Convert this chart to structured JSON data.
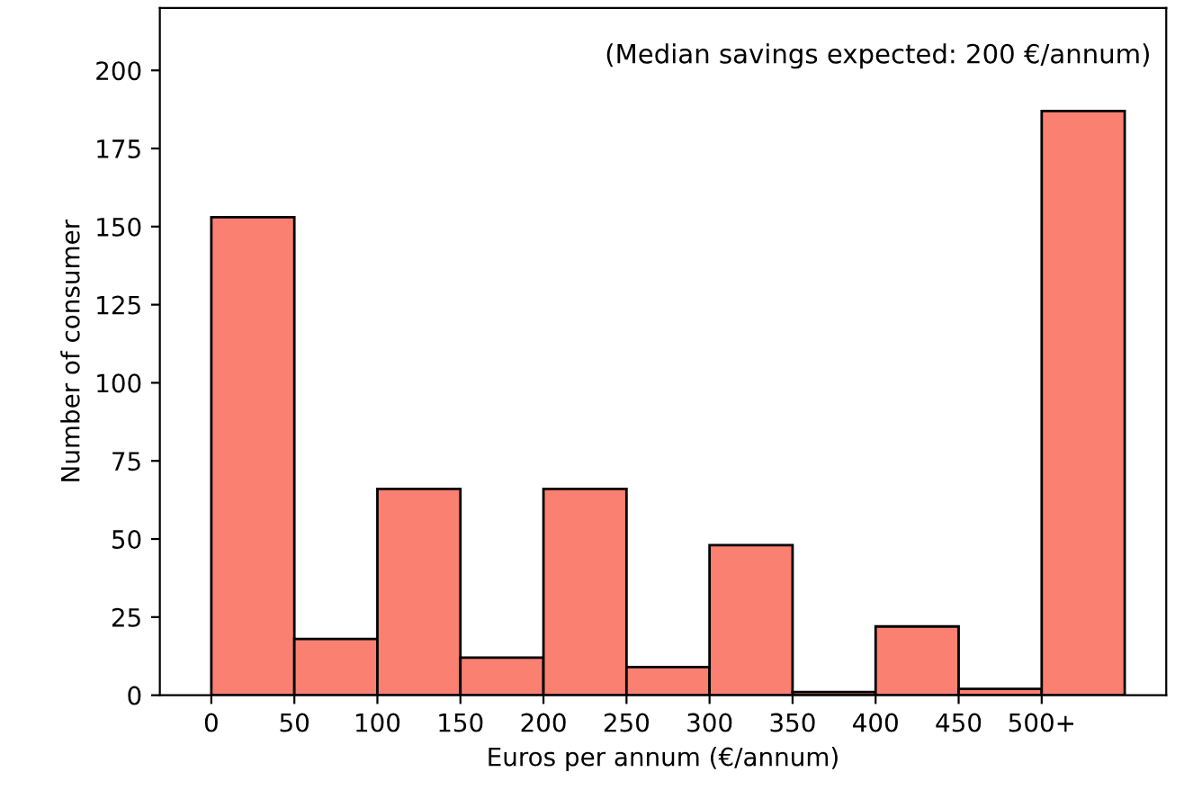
{
  "chart_data": {
    "type": "histogram",
    "xlabel": "Euros per annum (€/annum)",
    "ylabel": "Number of consumer",
    "annotations": [
      "(Median savings expected: 200 €/annum)"
    ],
    "bins": [
      0,
      50,
      100,
      150,
      200,
      250,
      300,
      350,
      400,
      450,
      500,
      550
    ],
    "values": [
      153,
      18,
      66,
      12,
      66,
      9,
      48,
      1,
      22,
      2,
      187
    ],
    "color": "#fa8072",
    "xlim": [
      -31,
      575
    ],
    "ylim": [
      0,
      220
    ],
    "xticks": [
      0,
      50,
      100,
      150,
      200,
      250,
      300,
      350,
      400,
      450,
      {
        "value": 500,
        "label": "500+"
      }
    ],
    "yticks": [
      0,
      25,
      50,
      75,
      100,
      125,
      150,
      175,
      200
    ],
    "grid": false
  }
}
